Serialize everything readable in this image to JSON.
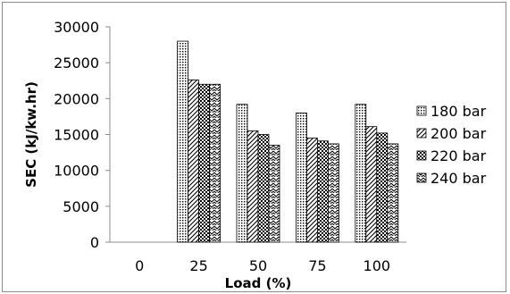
{
  "chart_data": {
    "type": "bar",
    "title": "",
    "xlabel": "Load (%)",
    "ylabel": "SEC (kJ/kw.hr)",
    "categories": [
      "0",
      "25",
      "50",
      "75",
      "100"
    ],
    "ylim": [
      0,
      30000
    ],
    "yticks": [
      0,
      5000,
      10000,
      15000,
      20000,
      25000,
      30000
    ],
    "grid": false,
    "legend_position": "right",
    "series": [
      {
        "name": "180 bar",
        "pattern": "dots",
        "values": [
          0,
          28000,
          19200,
          18000,
          19200
        ]
      },
      {
        "name": "200 bar",
        "pattern": "diagonal",
        "values": [
          0,
          22600,
          15500,
          14500,
          16100
        ]
      },
      {
        "name": "220 bar",
        "pattern": "checker",
        "values": [
          0,
          22000,
          15000,
          14100,
          15200
        ]
      },
      {
        "name": "240 bar",
        "pattern": "zigzag",
        "values": [
          0,
          22000,
          13500,
          13700,
          13700
        ]
      }
    ]
  }
}
